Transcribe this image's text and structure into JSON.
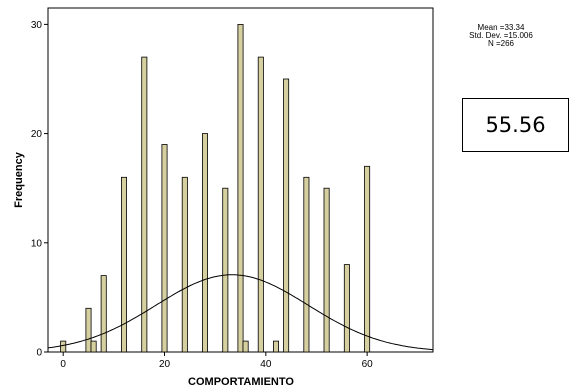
{
  "chart_data": {
    "type": "bar",
    "xlabel": "COMPORTAMIENTO",
    "ylabel": "Frequency",
    "xlim": [
      -3,
      73
    ],
    "ylim": [
      0,
      31.5
    ],
    "x_ticks": [
      0,
      20,
      40,
      60
    ],
    "y_ticks": [
      0,
      10,
      20,
      30
    ],
    "bar_color": "#d6cfa0",
    "grid": false,
    "x": [
      0,
      5,
      6,
      8,
      12,
      16,
      20,
      24,
      28,
      32,
      35,
      36,
      39,
      42,
      44,
      48,
      52,
      56,
      60
    ],
    "values": [
      1,
      4,
      1,
      7,
      16,
      27,
      19,
      16,
      20,
      15,
      30,
      1,
      27,
      1,
      25,
      16,
      15,
      8,
      17
    ],
    "normal_curve": {
      "mean": 33.34,
      "std_dev": 15.006,
      "n": 266,
      "bin_width": 1
    },
    "stats": {
      "mean": "Mean =33.34",
      "std_dev": "Std. Dev. =15.006",
      "n": "N =266"
    }
  },
  "annotation": {
    "value": "55.56"
  }
}
